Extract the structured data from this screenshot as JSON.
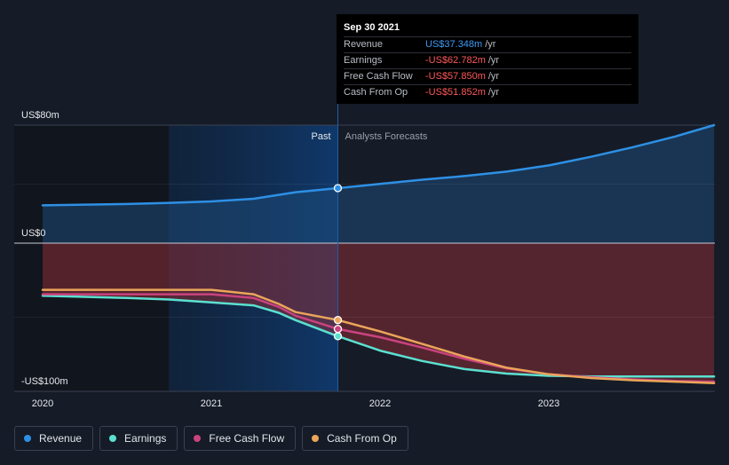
{
  "colors": {
    "revenue": "#2e90e5",
    "earnings": "#5ce0d0",
    "free_cash_flow": "#c9437f",
    "cash_from_op": "#eaa55a",
    "negative_value": "#ff5858",
    "revenue_value": "#3b9bf5"
  },
  "tooltip": {
    "date": "Sep 30 2021",
    "rows": [
      {
        "label": "Revenue",
        "value": "US$37.348m",
        "unit": "/yr"
      },
      {
        "label": "Earnings",
        "value": "-US$62.782m",
        "unit": "/yr"
      },
      {
        "label": "Free Cash Flow",
        "value": "-US$57.850m",
        "unit": "/yr"
      },
      {
        "label": "Cash From Op",
        "value": "-US$51.852m",
        "unit": "/yr"
      }
    ]
  },
  "chart_data": {
    "type": "line",
    "ylim": [
      -100,
      80
    ],
    "y_tick_labels": [
      {
        "value": 80,
        "label": "US$80m"
      },
      {
        "value": 0,
        "label": "US$0"
      },
      {
        "value": -100,
        "label": "-US$100m"
      }
    ],
    "x_tick_labels": [
      {
        "value": 2020,
        "label": "2020"
      },
      {
        "value": 2021,
        "label": "2021"
      },
      {
        "value": 2022,
        "label": "2022"
      },
      {
        "value": 2023,
        "label": "2023"
      }
    ],
    "xlim": [
      2019.85,
      2023.98
    ],
    "divider_x": 2021.75,
    "past_label": "Past",
    "forecast_label": "Analysts Forecasts",
    "series": [
      {
        "name": "Revenue",
        "key": "revenue",
        "x": [
          2020.0,
          2020.5,
          2020.75,
          2021.0,
          2021.25,
          2021.5,
          2021.75,
          2022.0,
          2022.25,
          2022.5,
          2022.75,
          2023.0,
          2023.25,
          2023.5,
          2023.75,
          2023.98
        ],
        "y": [
          25.6,
          26.5,
          27.3,
          28.3,
          30.1,
          34.5,
          37.3,
          40.2,
          43.0,
          45.5,
          48.5,
          52.7,
          58.5,
          65.1,
          72.3,
          80.0
        ]
      },
      {
        "name": "Earnings",
        "key": "earnings",
        "x": [
          2020.0,
          2020.5,
          2020.75,
          2021.0,
          2021.25,
          2021.4,
          2021.5,
          2021.75,
          2022.0,
          2022.25,
          2022.5,
          2022.75,
          2023.0,
          2023.25,
          2023.5,
          2023.75,
          2023.98
        ],
        "y": [
          -35.5,
          -37.0,
          -38.0,
          -40.0,
          -42.0,
          -47.0,
          -52.0,
          -62.8,
          -72.5,
          -79.5,
          -85.0,
          -88.0,
          -89.5,
          -90.0,
          -90.0,
          -90.0,
          -90.0
        ]
      },
      {
        "name": "Free Cash Flow",
        "key": "free_cash_flow",
        "x": [
          2020.0,
          2020.5,
          2020.75,
          2021.0,
          2021.25,
          2021.4,
          2021.5,
          2021.75,
          2022.0,
          2022.25,
          2022.5,
          2022.75,
          2023.0,
          2023.25,
          2023.5,
          2023.75,
          2023.98
        ],
        "y": [
          -34.5,
          -34.5,
          -34.5,
          -34.5,
          -37.0,
          -43.0,
          -49.0,
          -57.9,
          -63.5,
          -70.5,
          -78.0,
          -84.5,
          -88.5,
          -90.5,
          -92.0,
          -93.0,
          -93.5
        ]
      },
      {
        "name": "Cash From Op",
        "key": "cash_from_op",
        "x": [
          2020.0,
          2020.5,
          2020.75,
          2021.0,
          2021.25,
          2021.4,
          2021.5,
          2021.75,
          2022.0,
          2022.25,
          2022.5,
          2022.75,
          2023.0,
          2023.25,
          2023.5,
          2023.75,
          2023.98
        ],
        "y": [
          -31.5,
          -31.5,
          -31.5,
          -31.5,
          -34.5,
          -41.0,
          -46.5,
          -51.9,
          -59.5,
          -68.0,
          -76.5,
          -84.0,
          -88.5,
          -91.0,
          -92.5,
          -93.5,
          -94.5
        ]
      }
    ],
    "legend_position": "bottom-left"
  },
  "legend": {
    "items": [
      {
        "label": "Revenue",
        "key": "revenue"
      },
      {
        "label": "Earnings",
        "key": "earnings"
      },
      {
        "label": "Free Cash Flow",
        "key": "free_cash_flow"
      },
      {
        "label": "Cash From Op",
        "key": "cash_from_op"
      }
    ]
  }
}
